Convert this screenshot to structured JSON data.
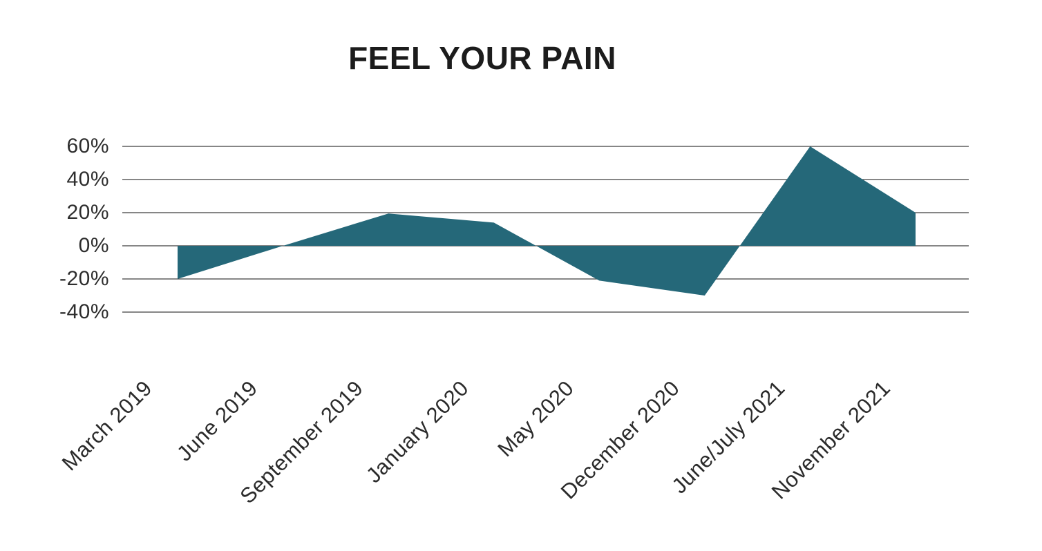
{
  "chart_data": {
    "type": "area",
    "title": "FEEL YOUR PAIN",
    "categories": [
      "March 2019",
      "June 2019",
      "September 2019",
      "January 2020",
      "May 2020",
      "December 2020",
      "June/July 2021",
      "November 2021"
    ],
    "values": [
      -20,
      0,
      19.5,
      14,
      -21,
      -30,
      60,
      20
    ],
    "y_ticks": [
      {
        "label": "60%",
        "value": 60
      },
      {
        "label": "40%",
        "value": 40
      },
      {
        "label": "20%",
        "value": 20
      },
      {
        "label": "0%",
        "value": 0
      },
      {
        "label": "-20%",
        "value": -20
      },
      {
        "label": "-40%",
        "value": -40
      }
    ],
    "ylim": [
      -40,
      60
    ],
    "baseline": 0,
    "grid": true,
    "legend": false,
    "xlabel": "",
    "ylabel": "",
    "area_color": "#256879",
    "grid_color": "#3d3d3d",
    "axis_label_color": "#2b2b2b",
    "title_color": "#1c1c1c"
  }
}
